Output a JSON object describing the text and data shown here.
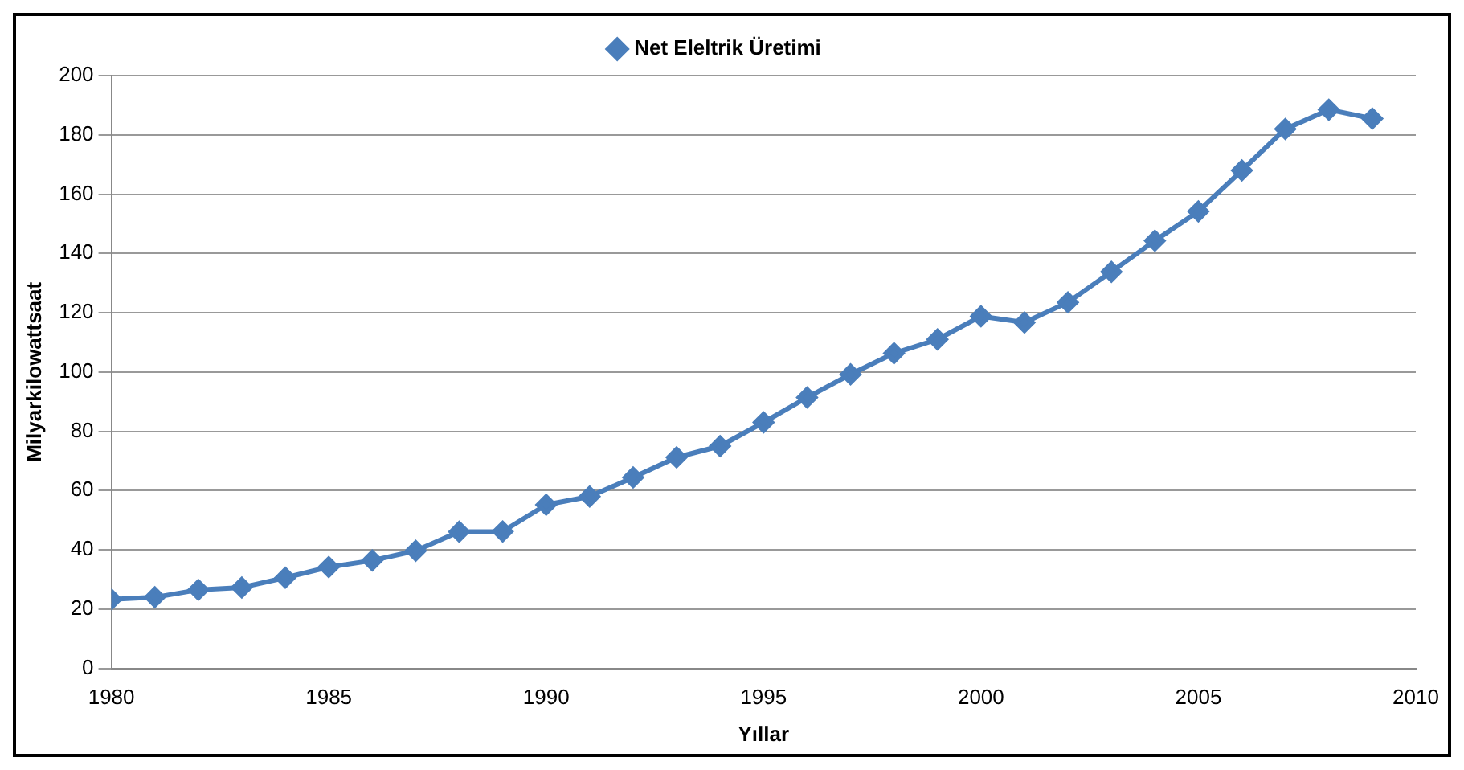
{
  "chart_data": {
    "type": "line",
    "xlabel": "Yıllar",
    "ylabel": "Milyarkilowattsaat",
    "x": [
      1980,
      1981,
      1982,
      1983,
      1984,
      1985,
      1986,
      1987,
      1988,
      1989,
      1990,
      1991,
      1992,
      1993,
      1994,
      1995,
      1996,
      1997,
      1998,
      1999,
      2000,
      2001,
      2002,
      2003,
      2004,
      2005,
      2006,
      2007,
      2008,
      2009
    ],
    "series": [
      {
        "name": "Net Eleltrik Üretimi",
        "color": "#4a7ebb",
        "values": [
          23.3,
          24,
          26.5,
          27.3,
          30.6,
          34.2,
          36.4,
          39.7,
          46.1,
          46.2,
          55.2,
          58,
          64.4,
          71.2,
          75,
          83,
          91.4,
          99.2,
          106.3,
          111,
          118.8,
          116.7,
          123.5,
          133.8,
          144.3,
          154.2,
          168,
          182,
          188.5,
          185.5
        ]
      }
    ],
    "xlim": [
      1980,
      2010
    ],
    "xticks": [
      1980,
      1985,
      1990,
      1995,
      2000,
      2005,
      2010
    ],
    "ylim": [
      0,
      200
    ],
    "yticks": [
      0,
      20,
      40,
      60,
      80,
      100,
      120,
      140,
      160,
      180,
      200
    ],
    "grid": "y",
    "legend": "top",
    "marker": "diamond",
    "line_style": "solid"
  }
}
